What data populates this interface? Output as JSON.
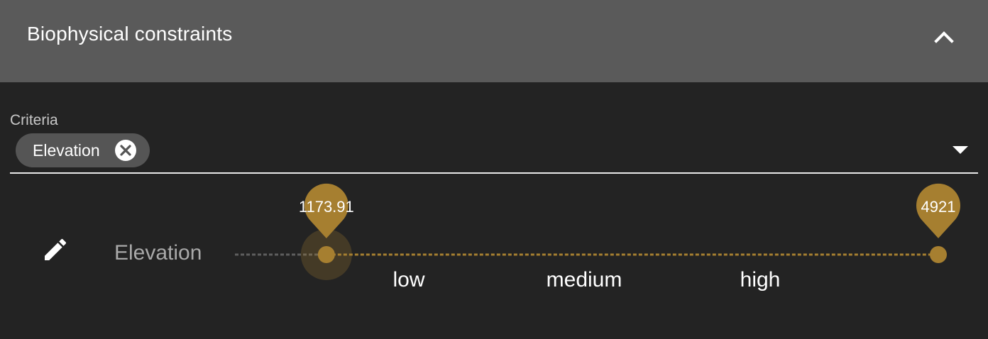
{
  "panel": {
    "title": "Biophysical constraints",
    "collapse_icon": "chevron-up-icon"
  },
  "criteria": {
    "label": "Criteria",
    "chips": [
      {
        "label": "Elevation",
        "remove_icon": "close-circle-icon"
      }
    ],
    "dropdown_icon": "caret-down-icon"
  },
  "constraint_rows": [
    {
      "edit_icon": "pencil-icon",
      "label": "Elevation",
      "slider": {
        "min_value": "1173.91",
        "max_value": "4921",
        "lower_fraction": 0.13,
        "upper_fraction": 1.0,
        "tick_labels": [
          "low",
          "medium",
          "high"
        ]
      }
    }
  ],
  "colors": {
    "header_bg": "#5a5a5a",
    "panel_bg": "#232323",
    "accent": "#a67f30",
    "chip_bg": "#555555"
  }
}
